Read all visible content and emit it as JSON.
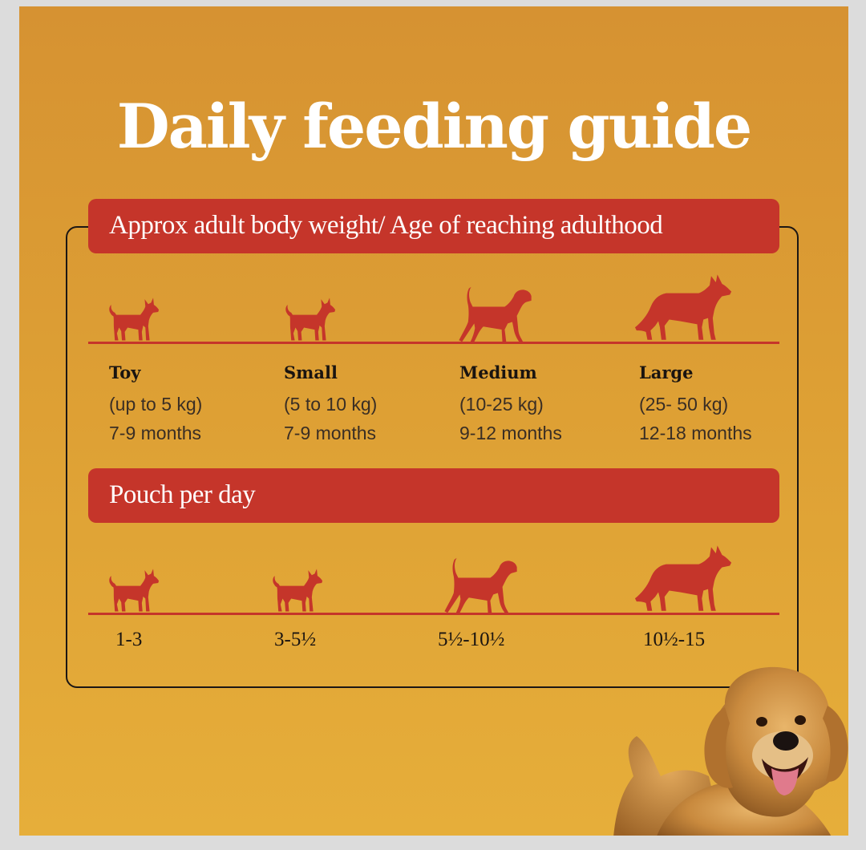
{
  "title": "Daily feeding guide",
  "banner_weight": "Approx adult body weight/ Age of reaching adulthood",
  "banner_pouch": "Pouch per day",
  "colors": {
    "background": "#dd9f34",
    "accent_red": "#c5352a",
    "title_text": "#ffffff"
  },
  "sizes": [
    {
      "name": "Toy",
      "weight": "(up to 5 kg)",
      "age": "7-9 months",
      "icon": "toy-dog-icon"
    },
    {
      "name": "Small",
      "weight": "(5 to 10 kg)",
      "age": "7-9 months",
      "icon": "small-dog-icon"
    },
    {
      "name": "Medium",
      "weight": "(10-25 kg)",
      "age": "9-12 months",
      "icon": "medium-dog-icon"
    },
    {
      "name": "Large",
      "weight": "(25- 50 kg)",
      "age": "12-18 months",
      "icon": "large-dog-icon"
    }
  ],
  "pouches": [
    "1-3",
    "3-5½",
    "5½-10½",
    "10½-15"
  ],
  "photo": "golden-retriever-photo"
}
